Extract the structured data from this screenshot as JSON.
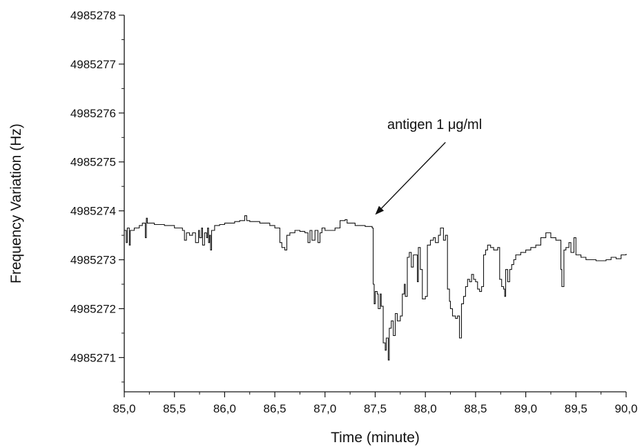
{
  "chart_data": {
    "type": "line",
    "xlabel": "Time (minute)",
    "ylabel": "Frequency Variation (Hz)",
    "xlim": [
      85.0,
      90.0
    ],
    "ylim": [
      4985270.3,
      4985278.0
    ],
    "x_ticks": [
      85.0,
      85.5,
      86.0,
      86.5,
      87.0,
      87.5,
      88.0,
      88.5,
      89.0,
      89.5,
      90.0
    ],
    "x_tick_labels": [
      "85,0",
      "85,5",
      "86,0",
      "86,5",
      "87,0",
      "87,5",
      "88,0",
      "88,5",
      "89,0",
      "89,5",
      "90,0"
    ],
    "y_ticks": [
      4985271,
      4985272,
      4985273,
      4985274,
      4985275,
      4985276,
      4985277,
      4985278
    ],
    "y_tick_labels": [
      "4985271",
      "4985272",
      "4985273",
      "4985274",
      "4985275",
      "4985276",
      "4985277",
      "4985278"
    ],
    "grid": false,
    "annotation": {
      "text": "antigen 1 μg/ml",
      "arrow_tip": [
        87.5,
        4985273.92
      ],
      "arrow_tail": [
        88.2,
        4985275.4
      ]
    },
    "series": [
      {
        "x": [
          85.0,
          85.02,
          85.03,
          85.05,
          85.06,
          85.1,
          85.15,
          85.18,
          85.21,
          85.22,
          85.23,
          85.3,
          85.4,
          85.5,
          85.58,
          85.6,
          85.62,
          85.65,
          85.68,
          85.71,
          85.74,
          85.75,
          85.77,
          85.78,
          85.8,
          85.82,
          85.83,
          85.84,
          85.85,
          85.86,
          85.87,
          85.9,
          85.95,
          86.0,
          86.05,
          86.1,
          86.15,
          86.2,
          86.22,
          86.25,
          86.35,
          86.45,
          86.5,
          86.55,
          86.57,
          86.6,
          86.62,
          86.65,
          86.7,
          86.75,
          86.8,
          86.83,
          86.85,
          86.87,
          86.9,
          86.93,
          86.95,
          86.97,
          87.0,
          87.05,
          87.1,
          87.15,
          87.2,
          87.22,
          87.3,
          87.4,
          87.45,
          87.47,
          87.48,
          87.49,
          87.5,
          87.52,
          87.53,
          87.55,
          87.56,
          87.58,
          87.6,
          87.61,
          87.63,
          87.64,
          87.66,
          87.68,
          87.7,
          87.72,
          87.75,
          87.77,
          87.79,
          87.8,
          87.82,
          87.84,
          87.86,
          87.88,
          87.9,
          87.92,
          87.93,
          87.95,
          87.97,
          88.0,
          88.02,
          88.05,
          88.08,
          88.1,
          88.13,
          88.15,
          88.18,
          88.2,
          88.22,
          88.24,
          88.25,
          88.27,
          88.3,
          88.32,
          88.34,
          88.36,
          88.38,
          88.4,
          88.42,
          88.44,
          88.46,
          88.48,
          88.5,
          88.52,
          88.54,
          88.56,
          88.58,
          88.6,
          88.62,
          88.65,
          88.68,
          88.7,
          88.72,
          88.74,
          88.76,
          88.78,
          88.79,
          88.8,
          88.82,
          88.84,
          88.86,
          88.88,
          88.9,
          88.95,
          89.0,
          89.05,
          89.1,
          89.15,
          89.2,
          89.25,
          89.3,
          89.33,
          89.35,
          89.36,
          89.38,
          89.4,
          89.43,
          89.45,
          89.48,
          89.5,
          89.55,
          89.6,
          89.7,
          89.8,
          89.85,
          89.9,
          89.95,
          90.0
        ],
        "y": [
          4985273.6,
          4985273.35,
          4985273.65,
          4985273.3,
          4985273.6,
          4985273.65,
          4985273.7,
          4985273.75,
          4985273.45,
          4985273.85,
          4985273.75,
          4985273.72,
          4985273.7,
          4985273.65,
          4985273.6,
          4985273.4,
          4985273.55,
          4985273.5,
          4985273.55,
          4985273.35,
          4985273.6,
          4985273.45,
          4985273.65,
          4985273.3,
          4985273.55,
          4985273.45,
          4985273.65,
          4985273.35,
          4985273.5,
          4985273.2,
          4985273.6,
          4985273.7,
          4985273.72,
          4985273.75,
          4985273.75,
          4985273.78,
          4985273.8,
          4985273.9,
          4985273.8,
          4985273.78,
          4985273.75,
          4985273.7,
          4985273.65,
          4985273.35,
          4985273.25,
          4985273.2,
          4985273.5,
          4985273.55,
          4985273.6,
          4985273.58,
          4985273.55,
          4985273.35,
          4985273.6,
          4985273.4,
          4985273.6,
          4985273.35,
          4985273.55,
          4985273.65,
          4985273.6,
          4985273.6,
          4985273.65,
          4985273.8,
          4985273.82,
          4985273.75,
          4985273.7,
          4985273.68,
          4985273.68,
          4985273.65,
          4985272.5,
          4985272.1,
          4985272.35,
          4985272.3,
          4985272.0,
          4985272.3,
          4985272.05,
          4985271.3,
          4985271.15,
          4985271.4,
          4985270.95,
          4985271.6,
          4985271.75,
          4985271.45,
          4985271.9,
          4985271.75,
          4985271.85,
          4985272.3,
          4985272.5,
          4985272.25,
          4985273.05,
          4985273.15,
          4985272.85,
          4985273.1,
          4985273.1,
          4985272.55,
          4985273.25,
          4985272.8,
          4985272.2,
          4985272.25,
          4985273.3,
          4985273.4,
          4985273.45,
          4985273.35,
          4985273.5,
          4985273.65,
          4985273.4,
          4985273.5,
          4985272.4,
          4985272.15,
          4985272.0,
          4985271.85,
          4985271.8,
          4985271.85,
          4985271.4,
          4985272.1,
          4985272.25,
          4985272.45,
          4985272.6,
          4985272.55,
          4985272.7,
          4985272.6,
          4985272.55,
          4985272.4,
          4985272.35,
          4985272.45,
          4985273.1,
          4985273.2,
          4985273.3,
          4985273.25,
          4985273.2,
          4985273.2,
          4985273.25,
          4985272.6,
          4985272.45,
          4985272.4,
          4985272.25,
          4985272.8,
          4985272.55,
          4985272.8,
          4985272.9,
          4985273.0,
          4985273.1,
          4985273.15,
          4985273.2,
          4985273.25,
          4985273.3,
          4985273.45,
          4985273.55,
          4985273.45,
          4985273.4,
          4985273.4,
          4985272.8,
          4985272.45,
          4985273.2,
          4985273.25,
          4985273.35,
          4985273.15,
          4985273.45,
          4985273.1,
          4985273.05,
          4985273.0,
          4985272.98,
          4985273.0,
          4985273.05,
          4985273.02,
          4985273.1,
          4985273.12
        ]
      }
    ]
  }
}
